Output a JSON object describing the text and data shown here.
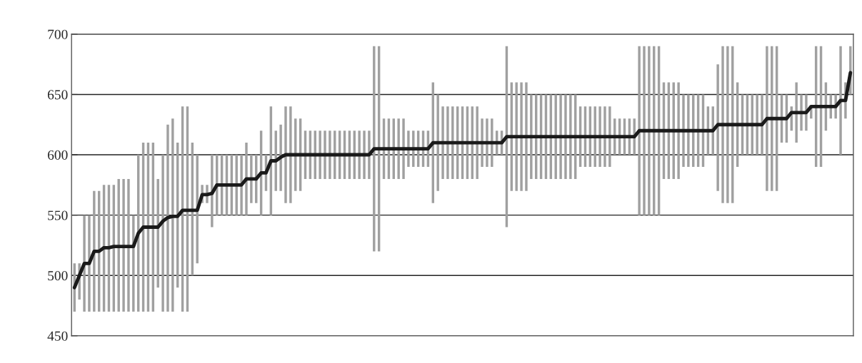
{
  "chart_data": {
    "type": "bar",
    "categories": [
      null,
      null,
      null,
      null,
      null,
      null,
      null,
      null,
      null,
      null,
      null,
      null,
      null,
      null,
      null,
      null,
      null,
      null,
      null,
      null,
      null,
      null,
      null,
      null,
      null,
      null,
      null,
      null,
      null,
      null,
      null,
      null,
      null,
      null,
      null,
      null,
      null,
      null,
      null,
      null,
      null,
      null,
      null,
      null,
      null,
      null,
      null,
      null,
      null,
      null,
      null,
      null,
      null,
      null,
      null,
      null,
      null,
      null,
      null,
      null,
      null,
      null,
      null,
      null,
      null,
      null,
      null,
      null,
      null,
      null,
      null,
      null,
      null,
      null,
      null,
      null,
      null,
      null,
      null,
      null,
      null,
      null,
      null,
      null,
      null,
      null,
      null,
      null,
      null,
      null,
      null,
      null,
      null,
      null,
      null,
      null,
      null,
      null,
      null,
      null,
      null,
      null,
      null,
      null,
      null,
      null,
      null,
      null,
      null,
      null,
      null,
      null,
      null,
      null,
      null,
      null,
      null,
      null,
      null,
      null,
      null,
      null,
      null,
      null,
      null,
      null,
      null,
      null,
      null,
      null,
      null,
      null,
      null,
      null,
      null,
      null,
      null,
      null,
      null,
      null,
      null,
      null,
      null,
      null,
      null,
      null,
      null,
      null,
      null,
      null,
      null,
      null,
      null,
      null,
      null,
      null,
      null,
      null,
      null
    ],
    "series": [
      {
        "color": "#a0a0a0",
        "base": [
          470,
          480,
          470,
          470,
          470,
          470,
          470,
          470,
          470,
          470,
          470,
          470,
          470,
          470,
          470,
          470,
          470,
          490,
          470,
          470,
          470,
          490,
          470,
          470,
          500,
          510,
          560,
          560,
          540,
          550,
          550,
          550,
          550,
          550,
          550,
          550,
          560,
          560,
          550,
          570,
          550,
          570,
          570,
          560,
          560,
          570,
          570,
          580,
          580,
          580,
          580,
          580,
          580,
          580,
          580,
          580,
          580,
          580,
          580,
          580,
          580,
          520,
          520,
          580,
          580,
          580,
          580,
          580,
          590,
          590,
          590,
          590,
          590,
          560,
          570,
          580,
          580,
          580,
          580,
          580,
          580,
          580,
          580,
          590,
          590,
          590,
          600,
          600,
          540,
          570,
          570,
          570,
          570,
          580,
          580,
          580,
          580,
          580,
          580,
          580,
          580,
          580,
          580,
          590,
          590,
          590,
          590,
          590,
          590,
          590,
          600,
          600,
          600,
          600,
          600,
          550,
          550,
          550,
          550,
          550,
          580,
          580,
          580,
          580,
          590,
          590,
          590,
          590,
          590,
          600,
          600,
          570,
          560,
          560,
          560,
          590,
          600,
          600,
          600,
          600,
          600,
          570,
          570,
          570,
          610,
          610,
          620,
          610,
          620,
          620,
          630,
          590,
          590,
          620,
          630,
          630,
          600,
          630,
          650
        ],
        "values": [
          40,
          30,
          80,
          80,
          100,
          100,
          105,
          105,
          105,
          110,
          110,
          110,
          80,
          130,
          140,
          140,
          140,
          90,
          130,
          155,
          160,
          120,
          170,
          170,
          110,
          90,
          15,
          15,
          60,
          50,
          50,
          50,
          50,
          50,
          50,
          60,
          40,
          40,
          70,
          30,
          90,
          50,
          55,
          80,
          80,
          60,
          60,
          40,
          40,
          40,
          40,
          40,
          40,
          40,
          40,
          40,
          40,
          40,
          40,
          40,
          40,
          170,
          170,
          50,
          50,
          50,
          50,
          50,
          30,
          30,
          30,
          30,
          30,
          100,
          80,
          60,
          60,
          60,
          60,
          60,
          60,
          60,
          60,
          40,
          40,
          40,
          20,
          20,
          150,
          90,
          90,
          90,
          90,
          70,
          70,
          70,
          70,
          70,
          70,
          70,
          70,
          70,
          70,
          50,
          50,
          50,
          50,
          50,
          50,
          50,
          30,
          30,
          30,
          30,
          30,
          140,
          140,
          140,
          140,
          140,
          80,
          80,
          80,
          80,
          60,
          60,
          60,
          60,
          60,
          40,
          40,
          105,
          130,
          130,
          130,
          70,
          50,
          50,
          50,
          50,
          50,
          120,
          120,
          120,
          40,
          40,
          20,
          50,
          30,
          30,
          10,
          100,
          100,
          40,
          20,
          20,
          90,
          30,
          40
        ]
      },
      {
        "type": "line",
        "color": "#1a1a1a",
        "values": [
          490,
          500,
          510,
          510,
          520,
          520,
          523,
          523,
          524,
          524,
          524,
          524,
          524,
          535,
          540,
          540,
          540,
          540,
          545,
          548,
          549,
          549,
          554,
          554,
          554,
          554,
          567,
          567,
          568,
          575,
          575,
          575,
          575,
          575,
          575,
          580,
          580,
          580,
          585,
          585,
          595,
          595,
          598,
          600,
          600,
          600,
          600,
          600,
          600,
          600,
          600,
          600,
          600,
          600,
          600,
          600,
          600,
          600,
          600,
          600,
          600,
          605,
          605,
          605,
          605,
          605,
          605,
          605,
          605,
          605,
          605,
          605,
          605,
          610,
          610,
          610,
          610,
          610,
          610,
          610,
          610,
          610,
          610,
          610,
          610,
          610,
          610,
          610,
          615,
          615,
          615,
          615,
          615,
          615,
          615,
          615,
          615,
          615,
          615,
          615,
          615,
          615,
          615,
          615,
          615,
          615,
          615,
          615,
          615,
          615,
          615,
          615,
          615,
          615,
          615,
          620,
          620,
          620,
          620,
          620,
          620,
          620,
          620,
          620,
          620,
          620,
          620,
          620,
          620,
          620,
          620,
          625,
          625,
          625,
          625,
          625,
          625,
          625,
          625,
          625,
          625,
          630,
          630,
          630,
          630,
          630,
          635,
          635,
          635,
          635,
          640,
          640,
          640,
          640,
          640,
          640,
          645,
          645,
          668
        ]
      }
    ],
    "ylim": [
      450,
      700
    ],
    "yticks": [
      450,
      500,
      550,
      600,
      650,
      700
    ],
    "grid": "y"
  }
}
